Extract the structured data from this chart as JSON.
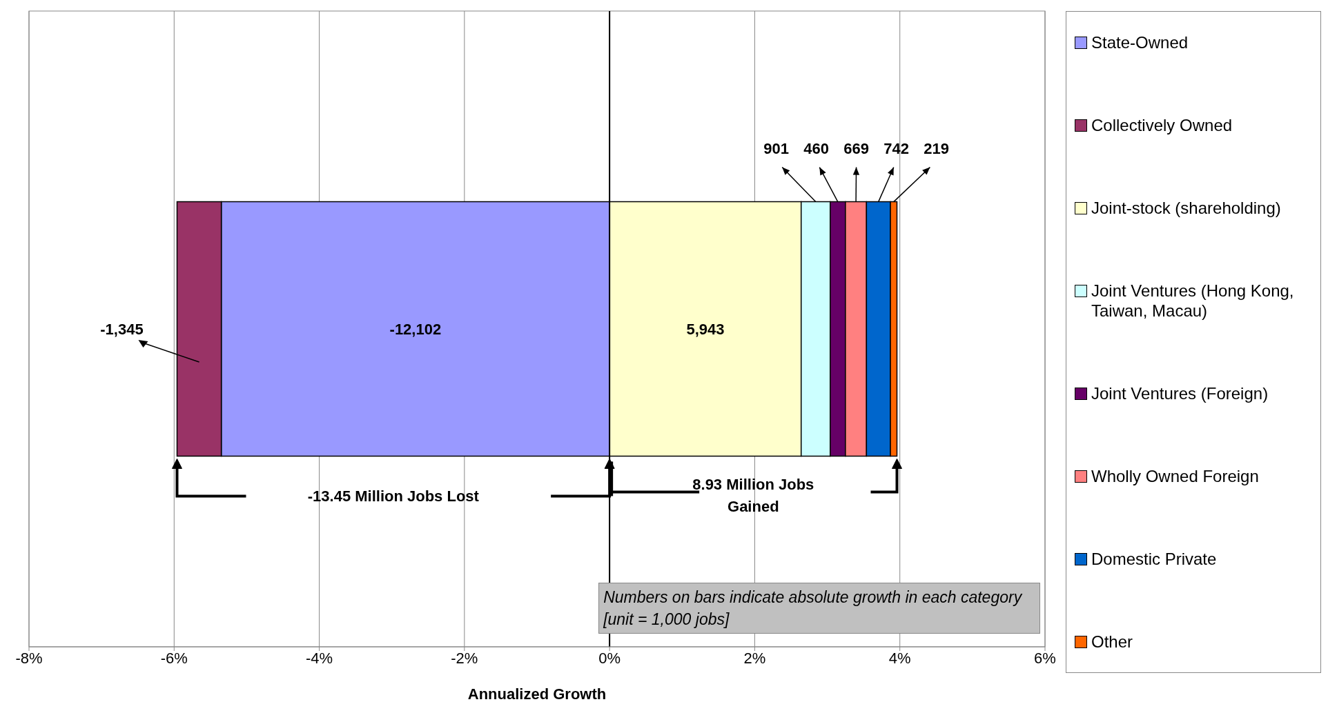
{
  "chart_data": {
    "type": "bar",
    "orientation": "horizontal",
    "stacked": true,
    "xlabel": "Annualized Growth",
    "categories": [
      null
    ],
    "xlim": [
      -8,
      6
    ],
    "xticks": [
      {
        "value": -8,
        "label": "-8%"
      },
      {
        "value": -6,
        "label": "-6%"
      },
      {
        "value": -4,
        "label": "-4%"
      },
      {
        "value": -2,
        "label": "-2%"
      },
      {
        "value": 0,
        "label": "0%"
      },
      {
        "value": 2,
        "label": "2%"
      },
      {
        "value": 4,
        "label": "4%"
      },
      {
        "value": 6,
        "label": "6%"
      }
    ],
    "grid": "x",
    "legend": "right",
    "tick_labels": "x",
    "ref_lines": [
      {
        "axis": "x",
        "value": 0,
        "color": "#000000"
      }
    ],
    "series": [
      {
        "name": "State-Owned",
        "color": "#9999ff",
        "values": [
          -5.35
        ]
      },
      {
        "name": "Collectively Owned",
        "color": "#993366",
        "values": [
          -0.61
        ]
      },
      {
        "name": "Joint-stock (shareholding)",
        "color": "#ffffcc",
        "values": [
          2.64
        ]
      },
      {
        "name": "Joint Ventures (Hong Kong, Taiwan, Macau)",
        "color": "#ccffff",
        "values": [
          0.4
        ]
      },
      {
        "name": "Joint Ventures (Foreign)",
        "color": "#660066",
        "values": [
          0.21
        ]
      },
      {
        "name": "Wholly Owned Foreign",
        "color": "#ff8080",
        "values": [
          0.29
        ]
      },
      {
        "name": "Domestic Private",
        "color": "#0066cc",
        "values": [
          0.33
        ]
      },
      {
        "name": "Other",
        "color": "#ff6600",
        "values": [
          0.09
        ]
      }
    ],
    "annotations": [
      "-12,102",
      "-1,345",
      "5,943",
      "901",
      "460",
      "669",
      "742",
      "219",
      "-13.45 Million Jobs Lost",
      "8.93 Million Jobs Gained",
      "Numbers on bars indicate absolute growth in each category [unit = 1,000 jobs]"
    ]
  }
}
